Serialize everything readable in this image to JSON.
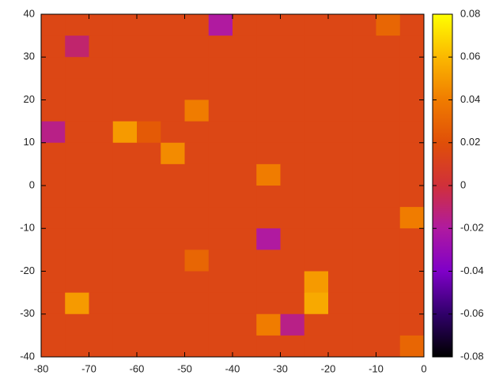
{
  "chart_data": {
    "type": "heatmap",
    "x": [
      -77.5,
      -72.5,
      -67.5,
      -62.5,
      -57.5,
      -52.5,
      -47.5,
      -42.5,
      -37.5,
      -32.5,
      -27.5,
      -22.5,
      -17.5,
      -12.5,
      -7.5,
      -2.5
    ],
    "y": [
      37.5,
      32.5,
      27.5,
      22.5,
      17.5,
      12.5,
      7.5,
      2.5,
      -2.5,
      -7.5,
      -12.5,
      -17.5,
      -22.5,
      -27.5,
      -32.5,
      -37.5
    ],
    "z": [
      [
        0.015,
        0.015,
        0.015,
        0.015,
        0.015,
        0.015,
        0.015,
        -0.02,
        0.015,
        0.015,
        0.015,
        0.015,
        0.015,
        0.015,
        0.03,
        0.015
      ],
      [
        0.015,
        -0.01,
        0.015,
        0.015,
        0.015,
        0.015,
        0.015,
        0.015,
        0.015,
        0.015,
        0.015,
        0.015,
        0.015,
        0.015,
        0.015,
        0.015
      ],
      [
        0.015,
        0.015,
        0.015,
        0.015,
        0.015,
        0.015,
        0.015,
        0.015,
        0.015,
        0.015,
        0.015,
        0.015,
        0.015,
        0.015,
        0.015,
        0.015
      ],
      [
        0.015,
        0.015,
        0.015,
        0.015,
        0.015,
        0.015,
        0.015,
        0.015,
        0.015,
        0.015,
        0.015,
        0.015,
        0.015,
        0.015,
        0.015,
        0.015
      ],
      [
        0.015,
        0.015,
        0.015,
        0.015,
        0.015,
        0.015,
        0.04,
        0.015,
        0.015,
        0.015,
        0.015,
        0.015,
        0.015,
        0.015,
        0.015,
        0.015
      ],
      [
        -0.015,
        0.015,
        0.015,
        0.05,
        0.025,
        0.015,
        0.015,
        0.015,
        0.015,
        0.015,
        0.015,
        0.015,
        0.015,
        0.015,
        0.015,
        0.015
      ],
      [
        0.015,
        0.015,
        0.015,
        0.015,
        0.015,
        0.045,
        0.015,
        0.015,
        0.015,
        0.015,
        0.015,
        0.015,
        0.015,
        0.015,
        0.015,
        0.015
      ],
      [
        0.015,
        0.015,
        0.015,
        0.015,
        0.015,
        0.015,
        0.015,
        0.015,
        0.015,
        0.04,
        0.015,
        0.015,
        0.015,
        0.015,
        0.015,
        0.015
      ],
      [
        0.015,
        0.015,
        0.015,
        0.015,
        0.015,
        0.015,
        0.015,
        0.015,
        0.015,
        0.015,
        0.015,
        0.015,
        0.015,
        0.015,
        0.015,
        0.015
      ],
      [
        0.015,
        0.015,
        0.015,
        0.015,
        0.015,
        0.015,
        0.015,
        0.015,
        0.015,
        0.015,
        0.015,
        0.015,
        0.015,
        0.015,
        0.015,
        0.04
      ],
      [
        0.015,
        0.015,
        0.015,
        0.015,
        0.015,
        0.015,
        0.015,
        0.015,
        0.015,
        -0.02,
        0.015,
        0.015,
        0.015,
        0.015,
        0.015,
        0.015
      ],
      [
        0.015,
        0.015,
        0.015,
        0.015,
        0.015,
        0.015,
        0.03,
        0.015,
        0.015,
        0.015,
        0.015,
        0.015,
        0.015,
        0.015,
        0.015,
        0.015
      ],
      [
        0.015,
        0.015,
        0.015,
        0.015,
        0.015,
        0.015,
        0.015,
        0.015,
        0.015,
        0.015,
        0.015,
        0.05,
        0.015,
        0.015,
        0.015,
        0.015
      ],
      [
        0.015,
        0.05,
        0.015,
        0.015,
        0.015,
        0.015,
        0.015,
        0.015,
        0.015,
        0.015,
        0.015,
        0.055,
        0.015,
        0.015,
        0.015,
        0.015
      ],
      [
        0.015,
        0.015,
        0.015,
        0.015,
        0.015,
        0.015,
        0.015,
        0.015,
        0.015,
        0.04,
        -0.015,
        0.015,
        0.015,
        0.015,
        0.015,
        0.015
      ],
      [
        0.015,
        0.015,
        0.015,
        0.015,
        0.015,
        0.015,
        0.015,
        0.015,
        0.015,
        0.015,
        0.015,
        0.015,
        0.015,
        0.015,
        0.015,
        0.03
      ]
    ],
    "xlim": [
      -80,
      0
    ],
    "xticks": [
      -80,
      -70,
      -60,
      -50,
      -40,
      -30,
      -20,
      -10,
      0
    ],
    "ylim": [
      -40,
      40
    ],
    "yticks": [
      -40,
      -30,
      -20,
      -10,
      0,
      10,
      20,
      30,
      40
    ],
    "clim": [
      -0.08,
      0.08
    ],
    "cticks": [
      -0.08,
      -0.06,
      -0.04,
      -0.02,
      0,
      0.02,
      0.04,
      0.06,
      0.08
    ],
    "colormap": [
      "#000000",
      "#30006a",
      "#7f00c8",
      "#b01aa0",
      "#d0303a",
      "#e04f08",
      "#f07c00",
      "#fbb800",
      "#ffff00"
    ]
  }
}
